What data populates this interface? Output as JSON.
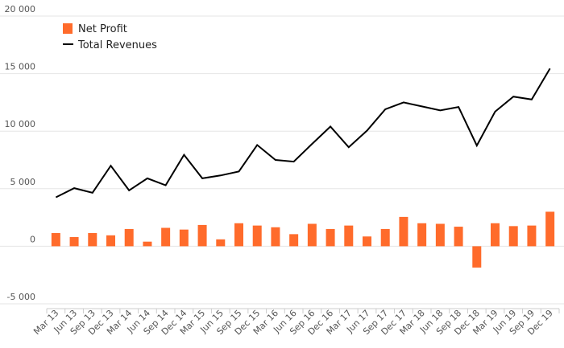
{
  "chart_data": {
    "type": "bar",
    "categories": [
      "Mar 13",
      "Jun 13",
      "Sep 13",
      "Dec 13",
      "Mar 14",
      "Jun 14",
      "Sep 14",
      "Dec 14",
      "Mar 15",
      "Jun 15",
      "Sep 15",
      "Dec 15",
      "Mar 16",
      "Jun 16",
      "Sep 16",
      "Dec 16",
      "Mar 17",
      "Jun 17",
      "Sep 17",
      "Dec 17",
      "Mar 18",
      "Jun 18",
      "Sep 18",
      "Dec 18",
      "Mar 19",
      "Jun 19",
      "Sep 19",
      "Dec 19"
    ],
    "ylim": [
      -5000,
      20000
    ],
    "yticks": [
      -5000,
      0,
      5000,
      10000,
      15000,
      20000
    ],
    "ytick_labels": [
      "-5 000",
      "0",
      "5 000",
      "10 000",
      "15 000",
      "20 000"
    ],
    "grid": true,
    "legend_position": "top-left",
    "series": [
      {
        "name": "Net Profit",
        "kind": "bar",
        "color": "#ff6b2b",
        "values": [
          1150,
          800,
          1150,
          950,
          1500,
          400,
          1600,
          1450,
          1850,
          600,
          2000,
          1800,
          1650,
          1050,
          1950,
          1500,
          1800,
          850,
          1500,
          2550,
          2000,
          1950,
          1700,
          -1850,
          2000,
          1750,
          1800,
          3000
        ]
      },
      {
        "name": "Total Revenues",
        "kind": "line",
        "color": "#000000",
        "values": [
          4250,
          5050,
          4650,
          7000,
          4850,
          5900,
          5300,
          7950,
          5900,
          6150,
          6500,
          8800,
          7500,
          7350,
          8900,
          10400,
          8600,
          10050,
          11900,
          12500,
          12150,
          11800,
          12100,
          8750,
          11700,
          13000,
          12750,
          15450
        ]
      }
    ]
  }
}
